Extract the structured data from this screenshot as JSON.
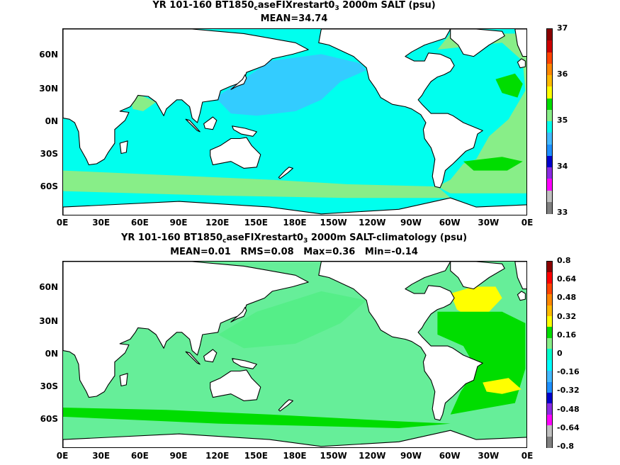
{
  "panels": [
    {
      "title": {
        "pre": "YR 101-160 BT1850",
        "sub1": "c",
        "mid": "aseFIXrestart0",
        "sub2": "3",
        "post": " 2000m SALT (psu)"
      },
      "stats": "MEAN=34.74",
      "lat_labels": [
        "60N",
        "30N",
        "0N",
        "30S",
        "60S"
      ],
      "lon_labels": [
        "0E",
        "30E",
        "60E",
        "90E",
        "120E",
        "150E",
        "180E",
        "150W",
        "120W",
        "90W",
        "60W",
        "30W",
        "0E"
      ],
      "colorbar": {
        "labels": [
          "37",
          "36",
          "35",
          "34",
          "33"
        ],
        "colors": [
          "#8b0000",
          "#cc0000",
          "#ff4400",
          "#ff8800",
          "#ffbb00",
          "#ffff00",
          "#00dd00",
          "#88ee88",
          "#00ffee",
          "#44bbff",
          "#1e90ff",
          "#0000cc",
          "#8a2be2",
          "#ff00ff",
          "#c0c0c0",
          "#808080"
        ]
      },
      "palette": {
        "ocean": "#00ffee",
        "pacific": "#33ccff",
        "north_atlantic": "#88ee88",
        "atlantic_core": "#00dd00",
        "southern_band": "#88ee88",
        "land": "#ffffff"
      }
    },
    {
      "title": {
        "pre": "YR 101-160 BT1850",
        "sub1": "c",
        "mid": "aseFIXrestart0",
        "sub2": "3",
        "post": " 2000m SALT-climatology (psu)"
      },
      "stats": "MEAN=0.01   RMS=0.08   Max=0.36   Min=-0.14",
      "lat_labels": [
        "60N",
        "30N",
        "0N",
        "30S",
        "60S"
      ],
      "lon_labels": [
        "0E",
        "30E",
        "60E",
        "90E",
        "120E",
        "150E",
        "180E",
        "150W",
        "120W",
        "90W",
        "60W",
        "30W",
        "0E"
      ],
      "colorbar": {
        "labels": [
          "0.8",
          "0.64",
          "0.48",
          "0.32",
          "0.16",
          "0",
          "-0.16",
          "-0.32",
          "-0.48",
          "-0.64",
          "-0.8"
        ],
        "colors": [
          "#8b0000",
          "#ff0000",
          "#ff4400",
          "#ff8800",
          "#ffbb00",
          "#ffff00",
          "#00dd00",
          "#88ee88",
          "#00ffcc",
          "#00ffff",
          "#44bbff",
          "#1e90ff",
          "#0000cc",
          "#8a2be2",
          "#ff00ff",
          "#c0c0c0",
          "#808080"
        ]
      },
      "palette": {
        "ocean": "#66ee99",
        "pacific": "#55ee88",
        "north_atlantic": "#ffff00",
        "atlantic_core": "#00dd00",
        "southern_band": "#00dd00",
        "land": "#ffffff"
      }
    }
  ]
}
